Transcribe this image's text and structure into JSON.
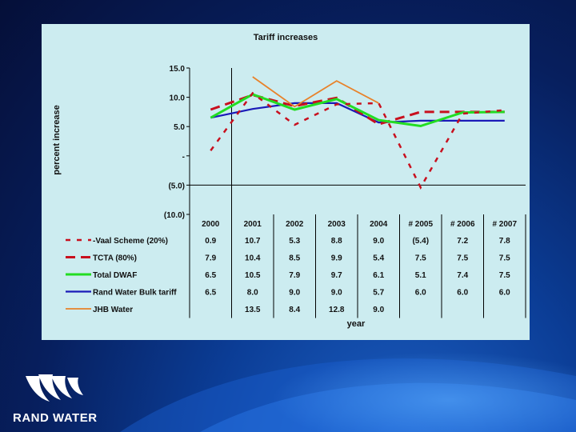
{
  "brand": {
    "name": "RAND WATER"
  },
  "colors": {
    "vaal": "#c8101e",
    "tcta": "#c8101e",
    "dwaf": "#22dd22",
    "randwater": "#1a1ab8",
    "jhb": "#e8822a"
  },
  "chart_data": {
    "type": "line",
    "title": "Tariff increases",
    "xlabel": "year",
    "ylabel": "percent increase",
    "ylim": [
      -10,
      15
    ],
    "y_ticks": [
      {
        "value": 15,
        "label": "15.0"
      },
      {
        "value": 10,
        "label": "10.0"
      },
      {
        "value": 5,
        "label": "5.0"
      },
      {
        "value": 0,
        "label": "-"
      },
      {
        "value": -5,
        "label": "(5.0)"
      },
      {
        "value": -10,
        "label": "(10.0)"
      }
    ],
    "categories": [
      "2000",
      "2001",
      "2002",
      "2003",
      "2004",
      "# 2005",
      "# 2006",
      "# 2007"
    ],
    "grid": false,
    "legend": "data-table-below",
    "series": [
      {
        "name": "Vaal Scheme (20%)",
        "legend_label": "-Vaal Scheme (20%)",
        "style": "dashed-thick",
        "color": "#c8101e",
        "values": [
          0.9,
          10.7,
          5.3,
          8.8,
          9.0,
          -5.4,
          7.2,
          7.8
        ],
        "labels": [
          "0.9",
          "10.7",
          "5.3",
          "8.8",
          "9.0",
          "(5.4)",
          "7.2",
          "7.8"
        ]
      },
      {
        "name": "TCTA (80%)",
        "legend_label": "TCTA (80%)",
        "style": "dashed-long",
        "color": "#c8101e",
        "values": [
          7.9,
          10.4,
          8.5,
          9.9,
          5.4,
          7.5,
          7.5,
          7.5
        ],
        "labels": [
          "7.9",
          "10.4",
          "8.5",
          "9.9",
          "5.4",
          "7.5",
          "7.5",
          "7.5"
        ]
      },
      {
        "name": "Total DWAF",
        "legend_label": "Total DWAF",
        "style": "solid-thick",
        "color": "#22dd22",
        "values": [
          6.5,
          10.5,
          7.9,
          9.7,
          6.1,
          5.1,
          7.4,
          7.5
        ],
        "labels": [
          "6.5",
          "10.5",
          "7.9",
          "9.7",
          "6.1",
          "5.1",
          "7.4",
          "7.5"
        ]
      },
      {
        "name": "Rand Water Bulk tariff",
        "legend_label": "Rand Water Bulk tariff",
        "style": "solid",
        "color": "#1a1ab8",
        "values": [
          6.5,
          8.0,
          9.0,
          9.0,
          5.7,
          6.0,
          6.0,
          6.0
        ],
        "labels": [
          "6.5",
          "8.0",
          "9.0",
          "9.0",
          "5.7",
          "6.0",
          "6.0",
          "6.0"
        ]
      },
      {
        "name": "JHB Water",
        "legend_label": "JHB Water",
        "style": "solid-thin",
        "color": "#e8822a",
        "values": [
          null,
          13.5,
          8.4,
          12.8,
          9.0,
          null,
          null,
          null
        ],
        "labels": [
          "",
          "13.5",
          "8.4",
          "12.8",
          "9.0",
          "",
          "",
          ""
        ]
      }
    ]
  }
}
